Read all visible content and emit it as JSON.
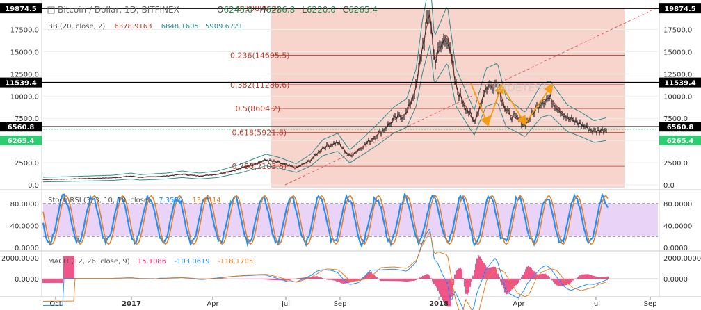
{
  "header": {
    "symbol": "Bitcoin / Dollar, 1D, BITFINEX",
    "open_label": "O",
    "open": "6249.0",
    "high_label": "H",
    "high": "6286.8",
    "low_label": "L",
    "low": "6220.0",
    "close_label": "C",
    "close": "6265.4"
  },
  "bb": {
    "label": "BB (20, close, 2)",
    "basis": "6378.9163",
    "upper": "6848.1605",
    "lower": "5909.6721"
  },
  "stoch": {
    "label": "Stoch RSI (3, 3, 10, 10, close)",
    "k": "7.3520",
    "d": "13.6614"
  },
  "macd": {
    "label": "MACD (12, 26, close, 9)",
    "hist": "15.1086",
    "macd": "-103.0619",
    "signal": "-118.1705"
  },
  "price_tags": {
    "top": "19874.5",
    "mid": "11539.4",
    "low": "6560.8",
    "current": "6265.4"
  },
  "watermark": "TRADETEST",
  "colors": {
    "candle": "#2b2b2b",
    "bb_band": "#2e8b8b",
    "bb_basis": "#b03a2e",
    "fib_bg": "#f4c6bb",
    "fib_line": "#c0392b",
    "trend": "#e35d5d",
    "arrow": "#f39c12",
    "stoch_k": "#1e90ff",
    "stoch_d": "#e67e22",
    "stoch_band": "#e4c9f6",
    "macd_line": "#1e90ff",
    "signal_line": "#e67e22",
    "hist": "#e91e63",
    "current_tag": "#2ecc71"
  },
  "chart_data": {
    "type": "line",
    "series": [
      {
        "x": [
          "2016-09-25",
          "2016-10-15",
          "2016-11-15",
          "2016-12-15",
          "2017-01-05",
          "2017-01-15",
          "2017-02-15",
          "2017-03-05",
          "2017-03-25",
          "2017-04-15",
          "2017-05-10",
          "2017-05-25",
          "2017-06-10",
          "2017-06-25",
          "2017-07-15",
          "2017-08-01",
          "2017-08-15",
          "2017-09-01",
          "2017-09-15",
          "2017-10-01",
          "2017-10-20",
          "2017-11-05",
          "2017-11-20",
          "2017-12-01",
          "2017-12-08",
          "2017-12-17",
          "2017-12-22",
          "2018-01-06",
          "2018-01-16",
          "2018-02-06",
          "2018-02-20",
          "2018-03-05",
          "2018-03-15",
          "2018-04-06",
          "2018-04-25",
          "2018-05-05",
          "2018-05-25",
          "2018-06-10",
          "2018-06-25",
          "2018-07-10"
        ],
        "values": [
          600,
          640,
          720,
          800,
          1000,
          850,
          1000,
          1200,
          1000,
          1200,
          1800,
          2300,
          2800,
          2500,
          1900,
          2800,
          4200,
          4800,
          3200,
          4400,
          5900,
          7300,
          8100,
          11000,
          15500,
          19500,
          14000,
          17000,
          11000,
          7000,
          11000,
          11500,
          8200,
          6800,
          9500,
          9800,
          7500,
          6800,
          6000,
          6300
        ]
      }
    ],
    "price_axis": {
      "ticks": [
        "0.0",
        "2500.0",
        "5000.0",
        "7500.0",
        "10000.0",
        "12500.0",
        "15000.0",
        "17500.0"
      ]
    },
    "time_axis": {
      "ticks": [
        "Oct",
        "2017",
        "Apr",
        "Jul",
        "Sep",
        "2018",
        "Apr",
        "Jul",
        "Sep"
      ]
    },
    "fib_levels": [
      {
        "label": "0(19870.3)",
        "value": 19870.3
      },
      {
        "label": "0.236(14605.5)",
        "value": 14605.5
      },
      {
        "label": "0.382(11286.6)",
        "value": 11286.6
      },
      {
        "label": "0.5(8604.2)",
        "value": 8604.2
      },
      {
        "label": "0.618(5921.8)",
        "value": 5921.8
      },
      {
        "label": "0.786(2103.8)",
        "value": 2103.8
      }
    ],
    "stoch_axis": {
      "ticks": [
        "0.0000",
        "40.0000",
        "80.0000"
      ]
    },
    "macd_axis": {
      "ticks": [
        "0.0000",
        "2000.0000"
      ]
    }
  }
}
